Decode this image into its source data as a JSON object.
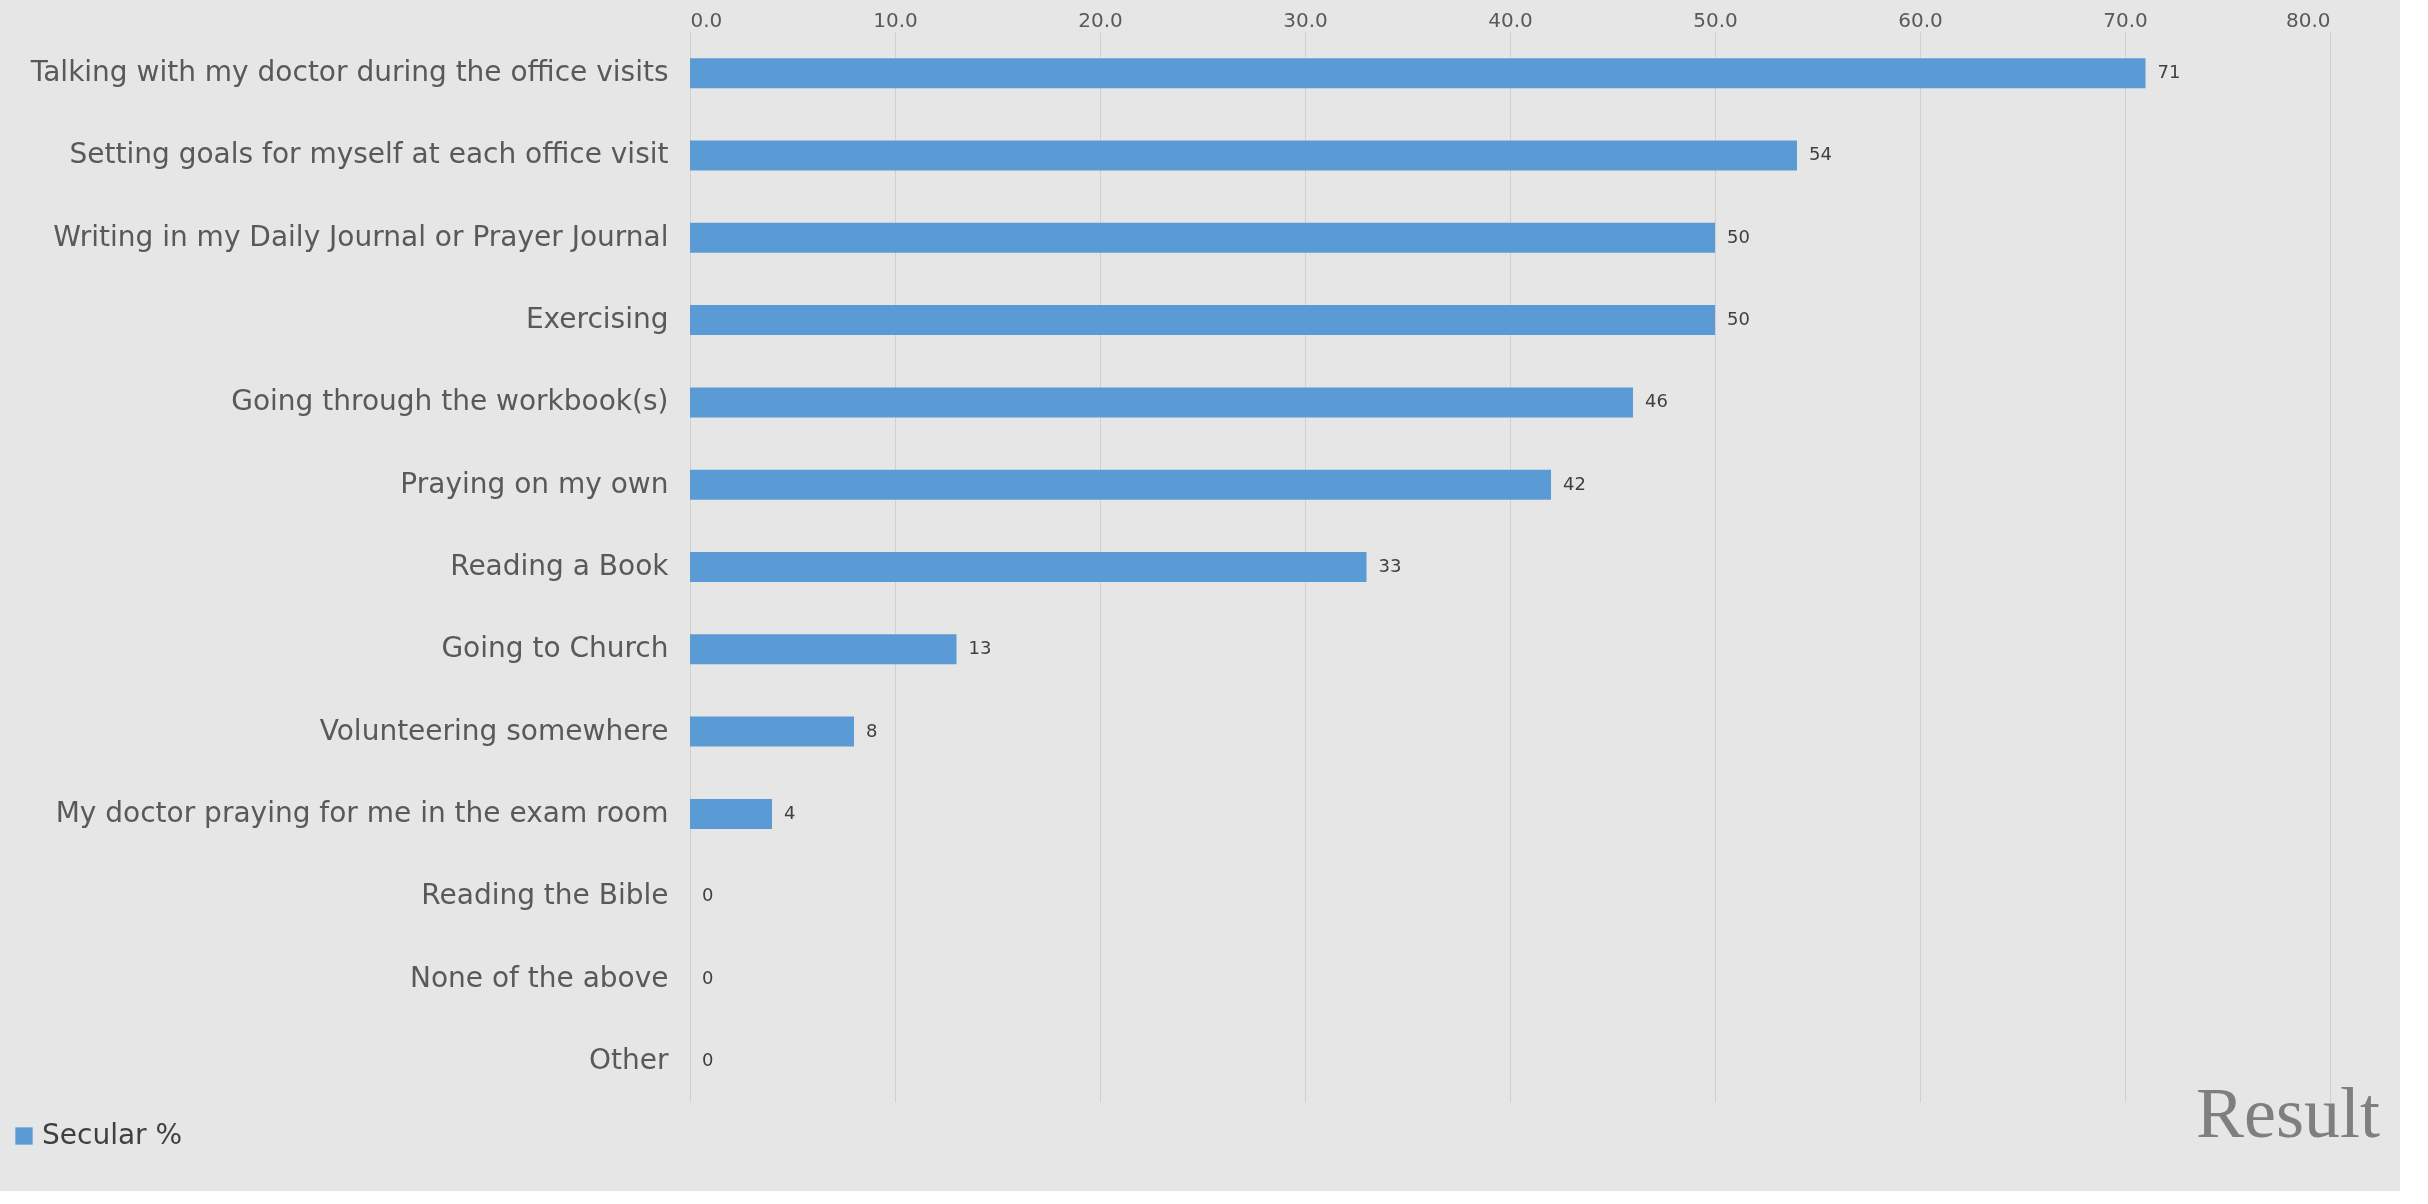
{
  "chart_data": {
    "type": "bar",
    "orientation": "horizontal",
    "categories": [
      "Talking with my doctor during the office visits",
      "Setting goals for myself at each office visit",
      "Writing in my Daily Journal or Prayer Journal",
      "Exercising",
      "Going through the workbook(s)",
      "Praying on my own",
      "Reading a Book",
      "Going to Church",
      "Volunteering somewhere",
      "My doctor praying for me in the exam room",
      "Reading the Bible",
      "None of the above",
      "Other"
    ],
    "series": [
      {
        "name": "Secular %",
        "color": "#5b9bd5",
        "values": [
          71,
          54,
          50,
          50,
          46,
          42,
          33,
          13,
          8,
          4,
          0,
          0,
          0
        ]
      }
    ],
    "xlim": [
      0,
      80
    ],
    "xticks": [
      {
        "value": 0,
        "label": "0.0"
      },
      {
        "value": 10,
        "label": "10.0"
      },
      {
        "value": 20,
        "label": "20.0"
      },
      {
        "value": 30,
        "label": "30.0"
      },
      {
        "value": 40,
        "label": "40.0"
      },
      {
        "value": 50,
        "label": "50.0"
      },
      {
        "value": 60,
        "label": "60.0"
      },
      {
        "value": 70,
        "label": "70.0"
      },
      {
        "value": 80,
        "label": "80.0"
      }
    ],
    "grid": "x",
    "data_labels": true,
    "legend": "bottom left",
    "annotations": [
      "Result"
    ]
  }
}
